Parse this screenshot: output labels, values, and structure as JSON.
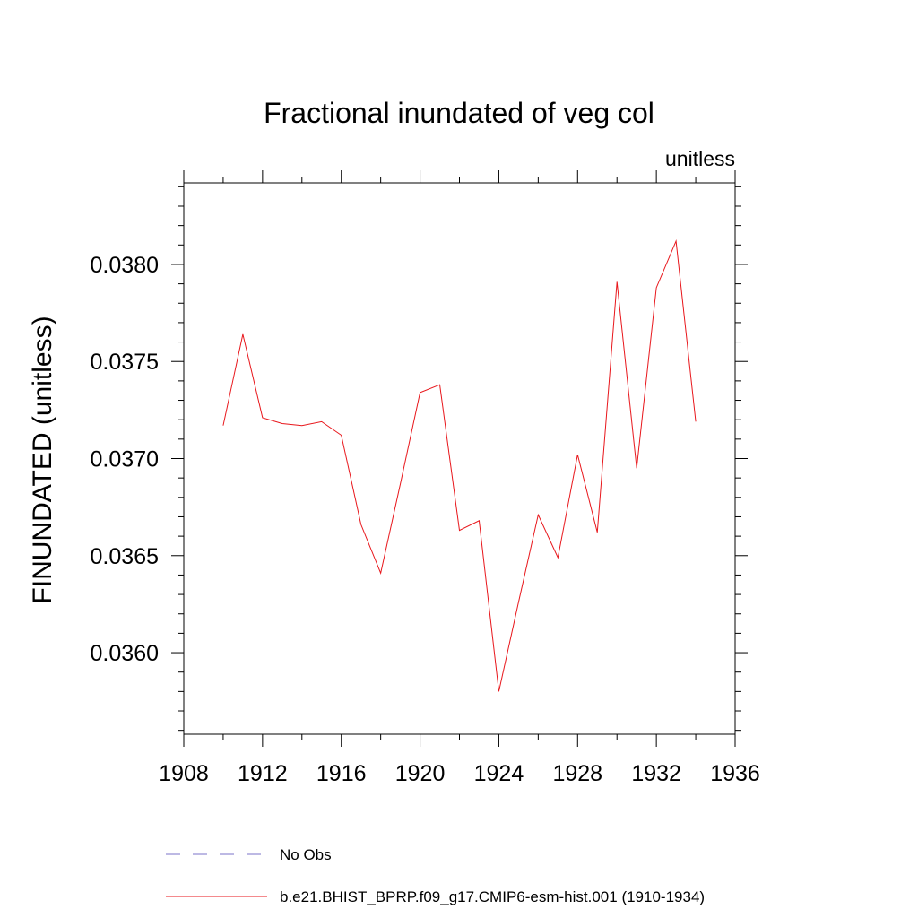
{
  "chart_data": {
    "type": "line",
    "title": "Fractional inundated of veg col",
    "units_label": "unitless",
    "xlabel": "",
    "ylabel": "FINUNDATED  (unitless)",
    "xlim": [
      1908,
      1936
    ],
    "ylim": [
      0.03558,
      0.03842
    ],
    "x_ticks": [
      1908,
      1912,
      1916,
      1920,
      1924,
      1928,
      1932,
      1936
    ],
    "y_ticks": [
      0.036,
      0.0365,
      0.037,
      0.0375,
      0.038
    ],
    "y_tick_labels": [
      "0.0360",
      "0.0365",
      "0.0370",
      "0.0375",
      "0.0380"
    ],
    "x_minor_step": 2,
    "y_minor_step": 0.0001,
    "grid": false,
    "legend_position": "bottom",
    "series": [
      {
        "name": "No Obs",
        "color": "#7b73c8",
        "dash": "dashed",
        "x": [],
        "values": []
      },
      {
        "name": "b.e21.BHIST_BPRP.f09_g17.CMIP6-esm-hist.001 (1910-1934)",
        "color": "#e8161b",
        "dash": "solid",
        "x": [
          1910,
          1911,
          1912,
          1913,
          1914,
          1915,
          1916,
          1917,
          1918,
          1919,
          1920,
          1921,
          1922,
          1923,
          1924,
          1925,
          1926,
          1927,
          1928,
          1929,
          1930,
          1931,
          1932,
          1933,
          1934
        ],
        "values": [
          0.03717,
          0.03764,
          0.03721,
          0.03718,
          0.03717,
          0.03719,
          0.03712,
          0.03666,
          0.03641,
          0.03687,
          0.03734,
          0.03738,
          0.03663,
          0.03668,
          0.0358,
          0.03626,
          0.03671,
          0.03649,
          0.03702,
          0.03662,
          0.03791,
          0.03695,
          0.03788,
          0.03812,
          0.03719
        ]
      }
    ]
  }
}
